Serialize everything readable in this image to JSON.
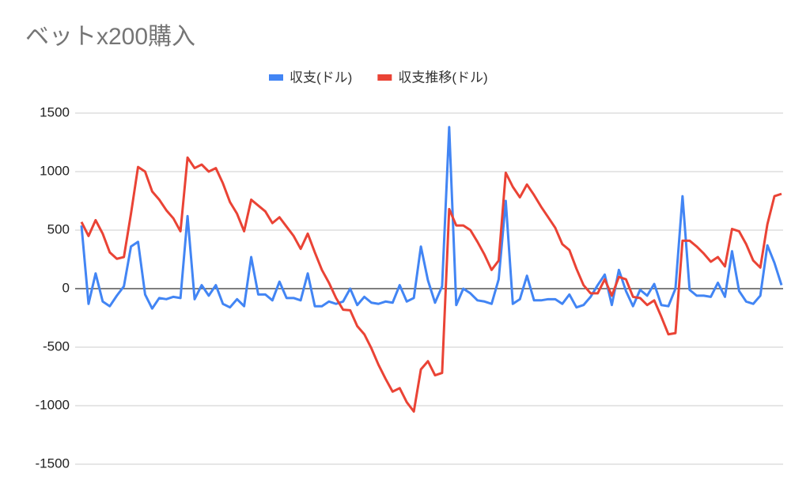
{
  "chart_data": {
    "type": "line",
    "title": "ベットx200購入",
    "ylim": [
      -1500,
      1500
    ],
    "yticks": [
      -1500,
      -1000,
      -500,
      0,
      500,
      1000,
      1500
    ],
    "grid": true,
    "series": [
      {
        "name": "収支(ドル)",
        "color": "#4285f4",
        "values": [
          540,
          -130,
          130,
          -110,
          -150,
          -60,
          20,
          360,
          400,
          -50,
          -170,
          -80,
          -90,
          -70,
          -80,
          620,
          -90,
          30,
          -60,
          30,
          -130,
          -160,
          -90,
          -150,
          270,
          -50,
          -50,
          -100,
          60,
          -80,
          -80,
          -100,
          130,
          -150,
          -150,
          -110,
          -130,
          -110,
          0,
          -140,
          -70,
          -120,
          -130,
          -110,
          -120,
          30,
          -110,
          -80,
          360,
          70,
          -120,
          20,
          1380,
          -140,
          0,
          -40,
          -100,
          -110,
          -130,
          80,
          750,
          -130,
          -90,
          110,
          -100,
          -100,
          -90,
          -90,
          -130,
          -50,
          -160,
          -140,
          -70,
          30,
          120,
          -140,
          160,
          -20,
          -150,
          -10,
          -60,
          40,
          -140,
          -150,
          0,
          790,
          -10,
          -60,
          -60,
          -70,
          50,
          -70,
          320,
          -20,
          -110,
          -130,
          -60,
          370,
          220,
          30
        ]
      },
      {
        "name": "収支推移(ドル)",
        "color": "#ea4335",
        "values": [
          570,
          450,
          585,
          470,
          310,
          255,
          270,
          640,
          1040,
          1000,
          830,
          760,
          670,
          600,
          490,
          1120,
          1030,
          1060,
          1000,
          1030,
          900,
          740,
          640,
          490,
          760,
          710,
          660,
          560,
          610,
          530,
          450,
          340,
          470,
          310,
          160,
          50,
          -80,
          -180,
          -185,
          -320,
          -390,
          -510,
          -650,
          -770,
          -880,
          -850,
          -970,
          -1050,
          -690,
          -620,
          -740,
          -720,
          680,
          540,
          540,
          500,
          400,
          290,
          160,
          240,
          990,
          870,
          780,
          890,
          800,
          700,
          610,
          520,
          380,
          330,
          170,
          30,
          -40,
          -40,
          80,
          -60,
          100,
          80,
          -70,
          -80,
          -140,
          -100,
          -240,
          -390,
          -380,
          410,
          410,
          360,
          300,
          230,
          270,
          190,
          510,
          490,
          380,
          240,
          180,
          550,
          790,
          810
        ]
      }
    ]
  }
}
